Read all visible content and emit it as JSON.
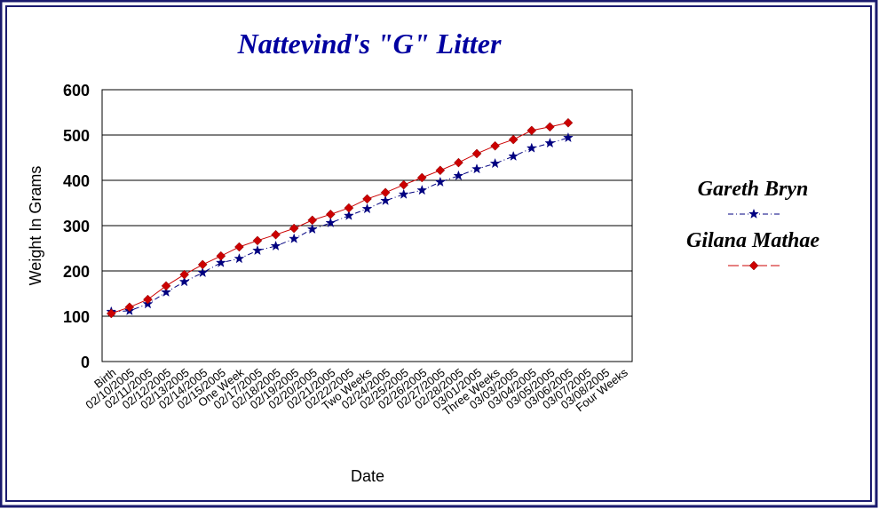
{
  "chart_data": {
    "type": "line",
    "title": "Nattevind's \"G\" Litter",
    "x_label": "Date",
    "y_label": "Weight In Grams",
    "categories": [
      "Birth",
      "02/10/2005",
      "02/11/2005",
      "02/12/2005",
      "02/13/2005",
      "02/14/2005",
      "02/15/2005",
      "One Week",
      "02/17/2005",
      "02/18/2005",
      "02/19/2005",
      "02/20/2005",
      "02/21/2005",
      "02/22/2005",
      "Two Weeks",
      "02/24/2005",
      "02/25/2005",
      "02/26/2005",
      "02/27/2005",
      "02/28/2005",
      "03/01/2005",
      "Three Weeks",
      "03/03/2005",
      "03/04/2005",
      "03/05/2005",
      "03/06/2005",
      "03/07/2005",
      "03/08/2005",
      "Four Weeks"
    ],
    "series": [
      {
        "name": "Gareth Bryn",
        "color": "#000080",
        "marker": "star",
        "dash": "dashdot",
        "values": [
          110,
          112,
          127,
          153,
          176,
          196,
          218,
          227,
          245,
          255,
          271,
          292,
          306,
          322,
          337,
          355,
          369,
          378,
          396,
          410,
          425,
          437,
          453,
          471,
          482,
          494,
          null,
          null,
          null
        ]
      },
      {
        "name": "Gilana Mathae",
        "color": "#cc0000",
        "marker": "diamond",
        "dash": "solid",
        "values": [
          106,
          120,
          137,
          167,
          192,
          214,
          233,
          253,
          267,
          280,
          294,
          312,
          325,
          339,
          359,
          373,
          390,
          406,
          422,
          439,
          459,
          476,
          490,
          510,
          518,
          527,
          null,
          null,
          null
        ]
      }
    ],
    "ylim": [
      0,
      600
    ],
    "yticks": [
      0,
      100,
      200,
      300,
      400,
      500,
      600
    ],
    "grid": true,
    "legend": "right"
  }
}
